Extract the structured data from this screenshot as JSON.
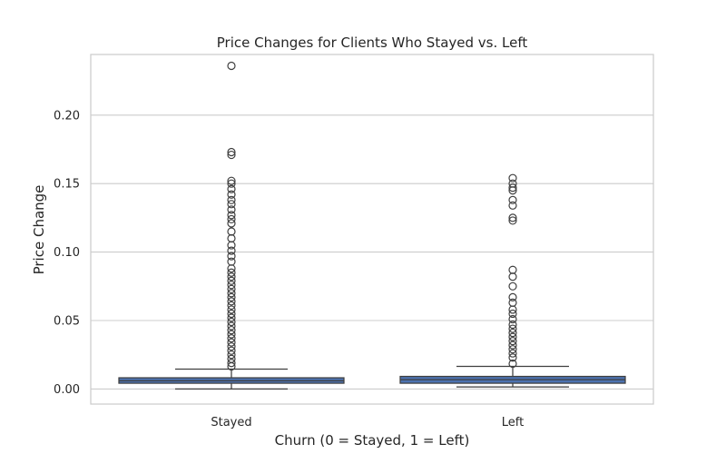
{
  "chart_data": {
    "type": "box",
    "title": "Price Changes for Clients Who Stayed vs. Left",
    "xlabel": "Churn (0 = Stayed, 1 = Left)",
    "ylabel": "Price Change",
    "categories": [
      "Stayed",
      "Left"
    ],
    "ylim": [
      -0.011,
      0.2443
    ],
    "yticks": [
      0.0,
      0.05,
      0.1,
      0.15,
      0.2
    ],
    "ytick_labels": [
      "0.00",
      "0.05",
      "0.10",
      "0.15",
      "0.20"
    ],
    "grid": "horizontal",
    "box_color": "#4c72b0",
    "series": [
      {
        "category": "Stayed",
        "whisker_low": 0.0,
        "q1": 0.0042,
        "median": 0.006,
        "q3": 0.0082,
        "whisker_high": 0.0145,
        "outliers": [
          0.236,
          0.173,
          0.171,
          0.152,
          0.15,
          0.146,
          0.142,
          0.138,
          0.135,
          0.131,
          0.127,
          0.124,
          0.121,
          0.115,
          0.11,
          0.105,
          0.101,
          0.097,
          0.093,
          0.088,
          0.085,
          0.082,
          0.079,
          0.076,
          0.073,
          0.07,
          0.067,
          0.064,
          0.061,
          0.058,
          0.055,
          0.052,
          0.049,
          0.046,
          0.043,
          0.04,
          0.037,
          0.034,
          0.031,
          0.028,
          0.025,
          0.022,
          0.019,
          0.0165
        ]
      },
      {
        "category": "Left",
        "whisker_low": 0.0015,
        "q1": 0.0042,
        "median": 0.0068,
        "q3": 0.0092,
        "whisker_high": 0.0165,
        "outliers": [
          0.154,
          0.15,
          0.147,
          0.145,
          0.138,
          0.134,
          0.125,
          0.123,
          0.087,
          0.082,
          0.075,
          0.067,
          0.063,
          0.058,
          0.055,
          0.051,
          0.047,
          0.044,
          0.041,
          0.038,
          0.035,
          0.032,
          0.029,
          0.026,
          0.023,
          0.0185
        ]
      }
    ]
  }
}
